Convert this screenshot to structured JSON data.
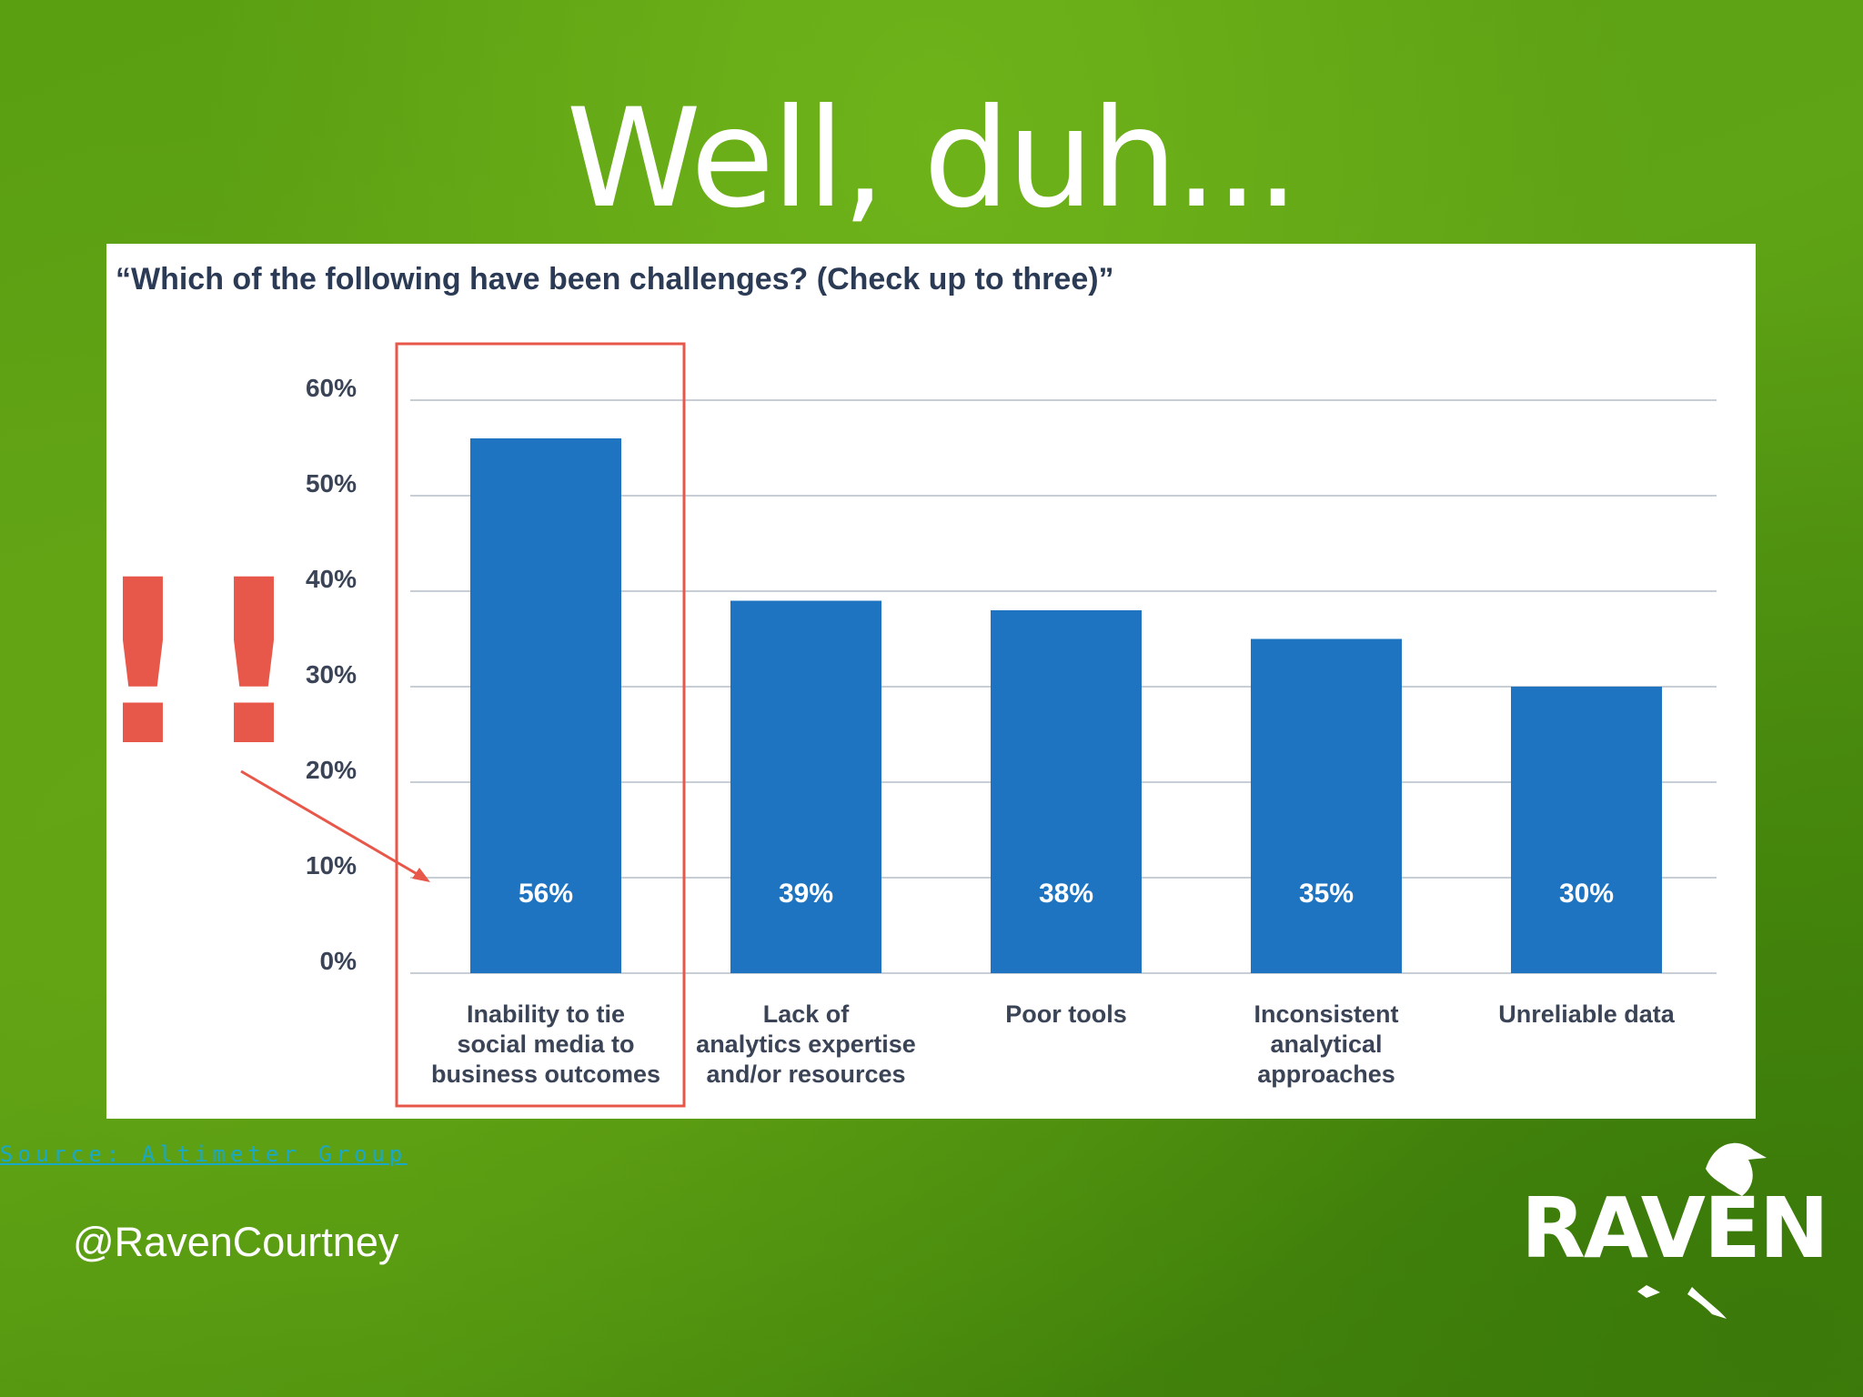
{
  "slide": {
    "title": "Well, duh...",
    "source": "Source: Altimeter Group",
    "handle": "@RavenCourtney",
    "logo_text": "RAVEN",
    "exclaim": "!!",
    "colors": {
      "bar": "#1f74c1",
      "highlight": "#e8584a",
      "grid": "#c8ced6",
      "axis_text": "#3a4456"
    }
  },
  "chart_data": {
    "type": "bar",
    "title": "“Which of the following have been challenges? (Check up to three)”",
    "categories": [
      [
        "Inability to tie",
        "social media to",
        "business outcomes"
      ],
      [
        "Lack of",
        "analytics expertise",
        "and/or resources"
      ],
      [
        "Poor tools"
      ],
      [
        "Inconsistent",
        "analytical",
        "approaches"
      ],
      [
        "Unreliable data"
      ]
    ],
    "values": [
      56,
      39,
      38,
      35,
      30
    ],
    "data_labels": [
      "56%",
      "39%",
      "38%",
      "35%",
      "30%"
    ],
    "yticks": [
      "0%",
      "10%",
      "20%",
      "30%",
      "40%",
      "50%",
      "60%"
    ],
    "ylim": [
      0,
      60
    ],
    "grid": true,
    "highlighted_category": 0
  }
}
